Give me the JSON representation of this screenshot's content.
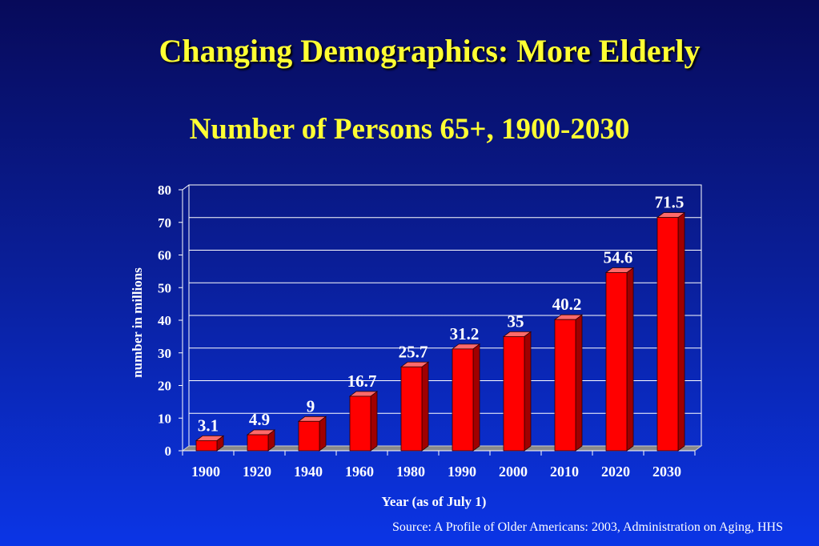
{
  "slide": {
    "title": "Changing Demographics: More Elderly",
    "source": "Source: A Profile of Older Americans: 2003, Administration on Aging, HHS"
  },
  "chart_data": {
    "type": "bar",
    "title": "Number of Persons 65+, 1900-2030",
    "xlabel": "Year (as of July 1)",
    "ylabel": "number in millions",
    "categories": [
      "1900",
      "1920",
      "1940",
      "1960",
      "1980",
      "1990",
      "2000",
      "2010",
      "2020",
      "2030"
    ],
    "values": [
      3.1,
      4.9,
      9,
      16.7,
      25.7,
      31.2,
      35,
      40.2,
      54.6,
      71.5
    ],
    "data_labels": [
      "3.1",
      "4.9",
      "9",
      "16.7",
      "25.7",
      "31.2",
      "35",
      "40.2",
      "54.6",
      "71.5"
    ],
    "ylim": [
      0,
      80
    ],
    "yticks": [
      0,
      10,
      20,
      30,
      40,
      50,
      60,
      70,
      80
    ],
    "grid": true,
    "bar_color": "#ff0000",
    "bar_side_color": "#a00000",
    "bar_top_color": "#ff6a6a",
    "gridline_color": "#ffffff",
    "text_color": "#ffffff",
    "title_color": "#ffff33"
  }
}
